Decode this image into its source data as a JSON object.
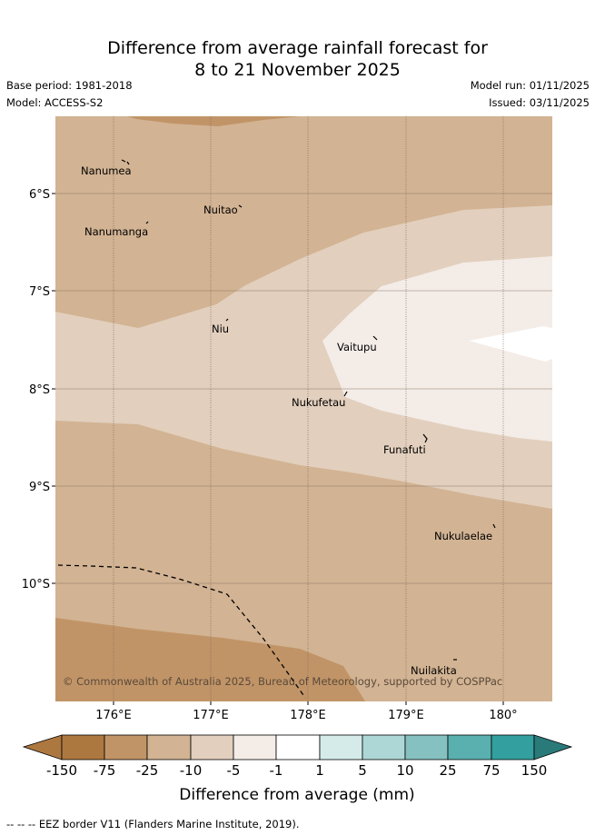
{
  "title": {
    "line1": "Difference from average rainfall forecast for",
    "line2": "8 to 21 November 2025"
  },
  "meta": {
    "base_period": "Base period: 1981-2018",
    "model": "Model: ACCESS-S2",
    "model_run": "Model run: 01/11/2025",
    "issued": "Issued: 03/11/2025"
  },
  "axes": {
    "lon_labels": [
      "176°E",
      "177°E",
      "178°E",
      "179°E",
      "180°"
    ],
    "lat_labels": [
      "6°S",
      "7°S",
      "8°S",
      "9°S",
      "10°S"
    ]
  },
  "islands": [
    "Nanumea",
    "Nuitao",
    "Nanumanga",
    "Niu",
    "Vaitupu",
    "Nukufetau",
    "Funafuti",
    "Nukulaelae",
    "Nuilakita"
  ],
  "copyright": "© Commonwealth of Australia 2025, Bureau of Meteorology, supported by COSPPac",
  "colorbar": {
    "labels": [
      "-150",
      "-75",
      "-25",
      "-10",
      "-5",
      "-1",
      "1",
      "5",
      "10",
      "25",
      "75",
      "150"
    ],
    "colors": [
      "#ad7840",
      "#c19467",
      "#d2b393",
      "#e2cfbd",
      "#f4ece7",
      "#ffffff",
      "#d4ebea",
      "#acd7d6",
      "#85c1c0",
      "#5aafaf",
      "#339f9e",
      "#2a7a7a"
    ],
    "title": "Difference from average (mm)"
  },
  "footer": "-- -- -- EEZ border V11 (Flanders Marine Institute, 2019)."
}
